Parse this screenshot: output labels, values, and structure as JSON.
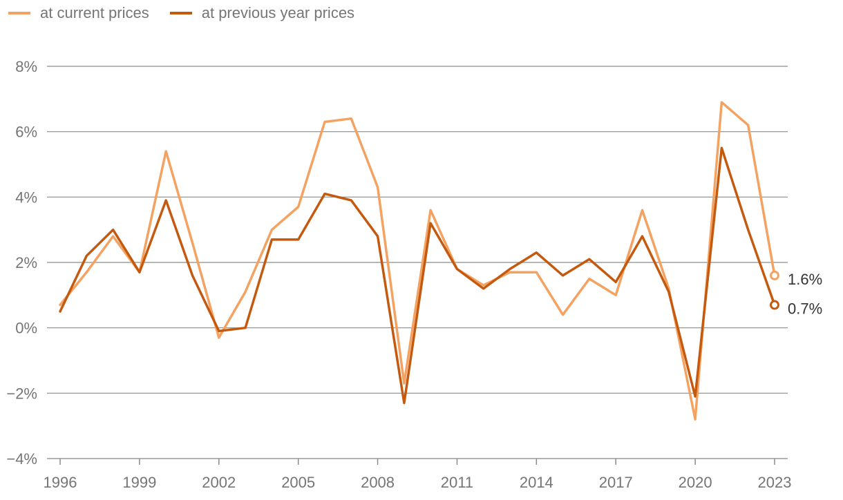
{
  "chart_data": {
    "type": "line",
    "title": "",
    "xlabel": "",
    "ylabel": "",
    "x": [
      1996,
      1997,
      1998,
      1999,
      2000,
      2001,
      2002,
      2003,
      2004,
      2005,
      2006,
      2007,
      2008,
      2009,
      2010,
      2011,
      2012,
      2013,
      2014,
      2015,
      2016,
      2017,
      2018,
      2019,
      2020,
      2021,
      2022,
      2023
    ],
    "x_tick_labels": [
      "1996",
      "1999",
      "2002",
      "2005",
      "2008",
      "2011",
      "2014",
      "2017",
      "2020",
      "2023"
    ],
    "y_tick_labels": [
      "8%",
      "6%",
      "4%",
      "2%",
      "0%",
      "−2%",
      "−4%"
    ],
    "y_ticks": [
      8,
      6,
      4,
      2,
      0,
      -2,
      -4
    ],
    "ylim": [
      -4,
      8
    ],
    "xlim": [
      1996,
      2023
    ],
    "grid": "horizontal",
    "legend_position": "top-left",
    "series": [
      {
        "name": "at current prices",
        "color": "#f4a261",
        "values": [
          0.7,
          1.7,
          2.8,
          1.7,
          5.4,
          2.6,
          -0.3,
          1.1,
          3.0,
          3.7,
          6.3,
          6.4,
          4.3,
          -1.7,
          3.6,
          1.8,
          1.3,
          1.7,
          1.7,
          0.4,
          1.5,
          1.0,
          3.6,
          1.2,
          -2.8,
          6.9,
          6.2,
          1.6
        ],
        "end_label": "1.6%"
      },
      {
        "name": "at previous year prices",
        "color": "#c45a0f",
        "values": [
          0.5,
          2.2,
          3.0,
          1.7,
          3.9,
          1.6,
          -0.1,
          0.0,
          2.7,
          2.7,
          4.1,
          3.9,
          2.8,
          -2.3,
          3.2,
          1.8,
          1.2,
          1.8,
          2.3,
          1.6,
          2.1,
          1.4,
          2.8,
          1.1,
          -2.1,
          5.5,
          3.0,
          0.7
        ],
        "end_label": "0.7%"
      }
    ]
  }
}
